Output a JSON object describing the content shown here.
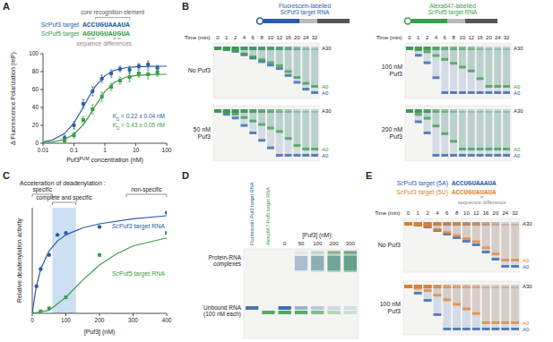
{
  "panel_labels": [
    "A",
    "B",
    "C",
    "D",
    "E"
  ],
  "chart_data": [
    {
      "type": "scatter",
      "core_label": "core recognition element",
      "difference_label": "sequence differences",
      "x_label": "Puf3PUM concentration (nM)",
      "y_label": "Δ Fluorescence Polarization (mP)",
      "log": "x",
      "xlim": [
        0.01,
        100
      ],
      "xticks": [
        0.01,
        0.1,
        1,
        10,
        100
      ],
      "ylim": [
        0,
        100
      ],
      "yticks": [
        0,
        20,
        40,
        60,
        80,
        100
      ],
      "series": [
        {
          "name": "ScPuf3 target",
          "sequence": "ACCUGUAAAUA",
          "color": "#2b5ca8",
          "marker": "circle",
          "kd_label": "KD = 0.22 ± 0.04 nM",
          "x": [
            0.05,
            0.1,
            0.2,
            0.4,
            0.8,
            1.6,
            3.1,
            6.3,
            12.5,
            25,
            50
          ],
          "values": [
            6,
            20,
            44,
            58,
            72,
            78,
            83,
            82,
            86,
            88,
            84
          ],
          "errors": [
            3,
            4,
            5,
            5,
            4,
            4,
            3,
            4,
            3,
            4,
            3
          ],
          "fit": {
            "x": [
              0.01,
              0.02,
              0.05,
              0.1,
              0.2,
              0.3,
              0.5,
              1,
              2,
              5,
              10,
              30,
              100
            ],
            "values": [
              1.5,
              3.6,
              10.9,
              22.6,
              40.2,
              51.5,
              63.9,
              75.4,
              81.4,
              84.5,
              85.4,
              85.9,
              86
            ]
          }
        },
        {
          "name": "ScPuf5 target",
          "sequence": "AGUUGUAUGUA",
          "color": "#3a9e48",
          "marker": "square",
          "kd_label": "KD = 0.43 ± 0.05 nM",
          "x": [
            0.05,
            0.1,
            0.2,
            0.4,
            0.8,
            1.6,
            3.1,
            6.3,
            12.5,
            25,
            50
          ],
          "values": [
            3,
            9,
            26,
            38,
            52,
            63,
            70,
            74,
            78,
            77,
            79
          ],
          "errors": [
            2,
            3,
            4,
            5,
            5,
            4,
            4,
            5,
            4,
            5,
            4
          ],
          "fit": {
            "x": [
              0.01,
              0.02,
              0.05,
              0.1,
              0.2,
              0.3,
              0.5,
              1,
              2,
              5,
              10,
              30,
              100
            ],
            "values": [
              0.6,
              1.4,
              4.4,
              10,
              20.7,
              29.6,
              42.2,
              57.7,
              67.8,
              74,
              75.7,
              76.7,
              77
            ]
          }
        }
      ]
    },
    {
      "type": "scatter",
      "title": "Acceleration of deadenylation :",
      "x_label": "[Puf3] (nM)",
      "y_label": "Relative deadenylation activity",
      "xlim": [
        0,
        400
      ],
      "xticks": [
        0,
        100,
        200,
        300,
        400
      ],
      "ylim": [
        0,
        1.05
      ],
      "tick_labels": "x",
      "highlight": [
        60,
        130
      ],
      "regions": [
        {
          "label": "specific",
          "range": [
            0,
            60
          ]
        },
        {
          "label": "complete and specific",
          "range": [
            60,
            130
          ]
        },
        {
          "label": "non-specific",
          "range": [
            280,
            400
          ]
        }
      ],
      "series": [
        {
          "name": "ScPuf3 target RNA",
          "color": "#2b5ca8",
          "marker": "circle",
          "x": [
            0,
            12.5,
            25,
            50,
            75,
            100,
            200,
            400
          ],
          "values": [
            0,
            0.27,
            0.44,
            0.58,
            0.78,
            0.8,
            0.86,
            1.0
          ],
          "fit": {
            "x": [
              0,
              10,
              25,
              50,
              75,
              100,
              150,
              200,
              300,
              400
            ],
            "values": [
              0,
              0.23,
              0.44,
              0.62,
              0.72,
              0.78,
              0.85,
              0.89,
              0.94,
              0.97
            ]
          }
        },
        {
          "name": "ScPuf5 target RNA",
          "color": "#3a9e48",
          "marker": "square",
          "x": [
            0,
            25,
            50,
            100,
            200,
            400
          ],
          "values": [
            0,
            0.02,
            0.05,
            0.16,
            0.58,
            0.8
          ],
          "fit": {
            "x": [
              0,
              50,
              100,
              150,
              200,
              250,
              300,
              350,
              400
            ],
            "values": [
              0,
              0.03,
              0.16,
              0.33,
              0.48,
              0.59,
              0.67,
              0.71,
              0.75
            ]
          }
        }
      ]
    }
  ],
  "gel_b": {
    "legend": [
      {
        "label_lines": [
          "Fluorescein-labelled",
          "ScPuf3 target RNA"
        ],
        "color": "#2b5ca8"
      },
      {
        "label_lines": [
          "Alexa647-labelled",
          "ScPuf5 target RNA"
        ],
        "color": "#3a9e48"
      }
    ],
    "time_label": "Time (min):",
    "times": [
      0,
      1,
      2,
      4,
      6,
      8,
      10,
      12,
      16,
      20,
      24,
      32
    ],
    "conditions": [
      {
        "label_lines": [
          "No Puf3"
        ]
      },
      {
        "label_lines": [
          "100 nM",
          "Puf3"
        ]
      },
      {
        "label_lines": [
          "50 nM",
          "Puf3"
        ]
      },
      {
        "label_lines": [
          "200 nM",
          "Puf3"
        ]
      }
    ],
    "band_labels": [
      {
        "text": "A30",
        "color": "#222222"
      },
      {
        "text": "A0",
        "color": "#3a9e48"
      },
      {
        "text": "A0",
        "color": "#2b5ca8"
      }
    ]
  },
  "gel_d": {
    "lane_labels": [
      {
        "text": "Fluorescein-Puf3 target RNA",
        "color": "#2b5ca8"
      },
      {
        "text": "Alexa647-Puf5 target RNA",
        "color": "#3a9e48"
      }
    ],
    "conc_label": "[Puf3] (nM):",
    "concentrations": [
      0,
      50,
      100,
      200,
      300
    ],
    "row_labels": [
      {
        "lines": [
          "Protein-RNA",
          "complexes"
        ]
      },
      {
        "lines": [
          "Unbound RNA",
          "(100 nM each)"
        ]
      }
    ]
  },
  "gel_e": {
    "sequences": [
      {
        "label": "ScPuf3 target (5A)",
        "sequence": "ACCUGUAAAUA",
        "color": "#2b5ca8"
      },
      {
        "label": "ScPuf3 target (5U)",
        "sequence": "ACCUGUAUAUA",
        "color": "#e8822a"
      }
    ],
    "difference_label": "sequence difference",
    "time_label": "Time (min):",
    "times": [
      0,
      1,
      2,
      4,
      6,
      8,
      10,
      12,
      16,
      20,
      24,
      32
    ],
    "conditions": [
      {
        "label_lines": [
          "No Puf3"
        ]
      },
      {
        "label_lines": [
          "100 nM",
          "Puf3"
        ]
      }
    ],
    "band_labels": [
      {
        "text": "A30",
        "color": "#222222"
      },
      {
        "text": "A0",
        "color": "#e8822a"
      },
      {
        "text": "A0",
        "color": "#2b5ca8"
      }
    ]
  }
}
